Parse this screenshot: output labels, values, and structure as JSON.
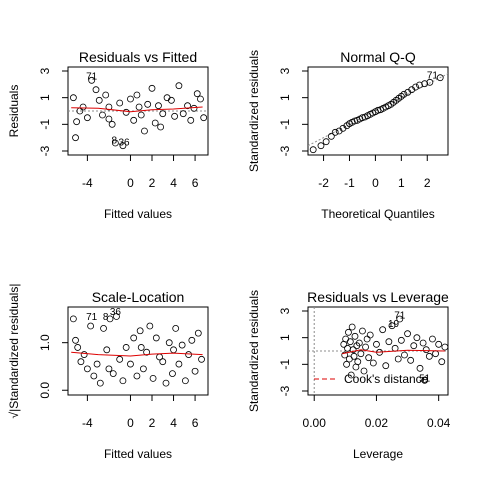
{
  "colors": {
    "smooth": "#dd0000",
    "reference": "#8c8c8c",
    "point": "#000000"
  },
  "chart_data": [
    {
      "type": "scatter",
      "title": "Residuals vs Fitted",
      "xlabel": "Fitted values",
      "ylabel": "Residuals",
      "xlim": [
        -5.8,
        7.2
      ],
      "ylim": [
        -3.3,
        3.3
      ],
      "xticks": [
        -4,
        0,
        2,
        4,
        6
      ],
      "yticks": [
        -3,
        -1,
        1,
        3
      ],
      "hline": 0,
      "smooth_line": [
        [
          -5.5,
          0.25
        ],
        [
          -3,
          0.2
        ],
        [
          0,
          -0.05
        ],
        [
          2,
          0.1
        ],
        [
          4,
          0.15
        ],
        [
          6.7,
          0.3
        ]
      ],
      "point_labels": [
        {
          "text": "71",
          "x": -3.6,
          "y": 2.35
        },
        {
          "text": "8",
          "x": -1.5,
          "y": -2.45
        },
        {
          "text": "36",
          "x": -0.6,
          "y": -2.6
        }
      ],
      "points": [
        [
          -5.3,
          1.0
        ],
        [
          -5.0,
          -0.8
        ],
        [
          -4.7,
          0.0
        ],
        [
          -5.1,
          -2.0
        ],
        [
          -4.4,
          0.3
        ],
        [
          -4.0,
          -0.5
        ],
        [
          -3.6,
          2.3
        ],
        [
          -3.2,
          1.6
        ],
        [
          -2.9,
          0.8
        ],
        [
          -2.6,
          -0.3
        ],
        [
          -2.3,
          1.2
        ],
        [
          -2.0,
          0.3
        ],
        [
          -1.7,
          -1.0
        ],
        [
          -1.4,
          -2.4
        ],
        [
          -1.0,
          0.6
        ],
        [
          -0.7,
          -2.6
        ],
        [
          -0.4,
          -0.1
        ],
        [
          0.0,
          0.9
        ],
        [
          0.3,
          -0.7
        ],
        [
          0.6,
          1.2
        ],
        [
          1.0,
          -0.3
        ],
        [
          1.3,
          -1.5
        ],
        [
          1.6,
          0.5
        ],
        [
          2.0,
          1.7
        ],
        [
          2.3,
          -0.9
        ],
        [
          2.6,
          0.4
        ],
        [
          3.0,
          -0.2
        ],
        [
          3.4,
          1.0
        ],
        [
          3.8,
          0.8
        ],
        [
          4.1,
          -0.4
        ],
        [
          4.5,
          1.9
        ],
        [
          4.9,
          -0.2
        ],
        [
          5.3,
          0.4
        ],
        [
          5.6,
          -0.7
        ],
        [
          5.9,
          0.2
        ],
        [
          6.2,
          1.3
        ],
        [
          6.5,
          0.9
        ],
        [
          6.8,
          -0.5
        ],
        [
          -2.0,
          -0.6
        ],
        [
          0.8,
          0.3
        ],
        [
          2.8,
          -1.2
        ]
      ]
    },
    {
      "type": "scatter",
      "title": "Normal Q-Q",
      "xlabel": "Theoretical Quantiles",
      "ylabel": "Standardized residuals",
      "xlim": [
        -2.6,
        2.8
      ],
      "ylim": [
        -3.3,
        3.3
      ],
      "xticks": [
        -2,
        -1,
        0,
        1,
        2
      ],
      "yticks": [
        -3,
        -1,
        1,
        3
      ],
      "reference_line": [
        [
          -2.6,
          -2.6
        ],
        [
          2.8,
          2.8
        ]
      ],
      "point_labels": [
        {
          "text": "71",
          "x": 2.2,
          "y": 2.45
        }
      ],
      "points": [
        [
          -2.4,
          -2.9
        ],
        [
          -2.1,
          -2.6
        ],
        [
          -1.9,
          -2.3
        ],
        [
          -1.7,
          -1.9
        ],
        [
          -1.55,
          -1.6
        ],
        [
          -1.4,
          -1.5
        ],
        [
          -1.25,
          -1.3
        ],
        [
          -1.1,
          -1.1
        ],
        [
          -1.0,
          -0.95
        ],
        [
          -0.9,
          -0.85
        ],
        [
          -0.8,
          -0.75
        ],
        [
          -0.7,
          -0.7
        ],
        [
          -0.6,
          -0.6
        ],
        [
          -0.5,
          -0.5
        ],
        [
          -0.4,
          -0.45
        ],
        [
          -0.3,
          -0.35
        ],
        [
          -0.2,
          -0.25
        ],
        [
          -0.1,
          -0.15
        ],
        [
          0.0,
          -0.05
        ],
        [
          0.1,
          0.05
        ],
        [
          0.2,
          0.1
        ],
        [
          0.3,
          0.2
        ],
        [
          0.4,
          0.3
        ],
        [
          0.5,
          0.4
        ],
        [
          0.6,
          0.5
        ],
        [
          0.7,
          0.65
        ],
        [
          0.8,
          0.8
        ],
        [
          0.9,
          0.95
        ],
        [
          1.0,
          1.1
        ],
        [
          1.1,
          1.25
        ],
        [
          1.25,
          1.4
        ],
        [
          1.4,
          1.6
        ],
        [
          1.55,
          1.8
        ],
        [
          1.7,
          1.95
        ],
        [
          1.9,
          2.05
        ],
        [
          2.1,
          2.15
        ],
        [
          2.5,
          2.5
        ]
      ]
    },
    {
      "type": "scatter",
      "title": "Scale-Location",
      "xlabel": "Fitted values",
      "ylabel": "√|Standardized residuals|",
      "xlim": [
        -5.8,
        7.2
      ],
      "ylim": [
        -0.1,
        1.75
      ],
      "xticks": [
        -4,
        0,
        2,
        4,
        6
      ],
      "yticks": [
        0.0,
        1.0
      ],
      "ytick_labels": [
        "0.0",
        "1.0"
      ],
      "smooth_line": [
        [
          -5.5,
          0.8
        ],
        [
          -3,
          0.75
        ],
        [
          0,
          0.72
        ],
        [
          2,
          0.76
        ],
        [
          4,
          0.78
        ],
        [
          6.7,
          0.75
        ]
      ],
      "point_labels": [
        {
          "text": "71",
          "x": -3.6,
          "y": 1.48
        },
        {
          "text": "8",
          "x": -2.3,
          "y": 1.48
        },
        {
          "text": "36",
          "x": -1.4,
          "y": 1.58
        }
      ],
      "points": [
        [
          -5.3,
          1.5
        ],
        [
          -5.1,
          1.05
        ],
        [
          -4.9,
          0.9
        ],
        [
          -4.6,
          0.6
        ],
        [
          -4.3,
          0.75
        ],
        [
          -4.0,
          0.45
        ],
        [
          -3.7,
          1.35
        ],
        [
          -3.4,
          0.3
        ],
        [
          -3.1,
          0.55
        ],
        [
          -2.8,
          0.15
        ],
        [
          -2.5,
          1.3
        ],
        [
          -2.2,
          0.85
        ],
        [
          -1.9,
          1.5
        ],
        [
          -1.6,
          0.35
        ],
        [
          -1.3,
          1.55
        ],
        [
          -1.0,
          0.65
        ],
        [
          -0.7,
          0.2
        ],
        [
          -0.4,
          0.9
        ],
        [
          0.0,
          0.55
        ],
        [
          0.3,
          1.1
        ],
        [
          0.6,
          0.3
        ],
        [
          0.9,
          1.25
        ],
        [
          1.2,
          0.45
        ],
        [
          1.5,
          0.8
        ],
        [
          1.8,
          1.35
        ],
        [
          2.1,
          0.25
        ],
        [
          2.4,
          1.1
        ],
        [
          2.7,
          0.7
        ],
        [
          3.0,
          0.6
        ],
        [
          3.3,
          0.15
        ],
        [
          3.6,
          1.0
        ],
        [
          3.9,
          0.35
        ],
        [
          4.2,
          1.3
        ],
        [
          4.5,
          0.55
        ],
        [
          4.8,
          0.95
        ],
        [
          5.1,
          0.2
        ],
        [
          5.4,
          0.75
        ],
        [
          5.7,
          1.05
        ],
        [
          6.0,
          0.4
        ],
        [
          6.3,
          1.2
        ],
        [
          6.6,
          0.65
        ],
        [
          -2.0,
          0.45
        ],
        [
          1.0,
          0.9
        ],
        [
          4.0,
          0.85
        ]
      ]
    },
    {
      "type": "scatter",
      "title": "Residuals vs Leverage",
      "xlabel": "Leverage",
      "ylabel": "Standardized residuals",
      "xlim": [
        -0.002,
        0.043
      ],
      "ylim": [
        -3.3,
        3.3
      ],
      "xticks": [
        0.0,
        0.02,
        0.04
      ],
      "xtick_labels": [
        "0.00",
        "0.02",
        "0.04"
      ],
      "yticks": [
        -3,
        -1,
        1,
        3
      ],
      "hline": 0,
      "vline": 0,
      "legend": {
        "label": "Cook's distance",
        "position": "bottom-left"
      },
      "smooth_line": [
        [
          0.009,
          -0.2
        ],
        [
          0.015,
          0.1
        ],
        [
          0.02,
          -0.1
        ],
        [
          0.03,
          0.05
        ],
        [
          0.042,
          0.0
        ]
      ],
      "point_labels": [
        {
          "text": "71",
          "x": 0.0275,
          "y": 2.45
        },
        {
          "text": "19",
          "x": 0.0255,
          "y": 1.8
        },
        {
          "text": "51",
          "x": 0.0355,
          "y": -2.3
        }
      ],
      "points": [
        [
          0.0095,
          0.5
        ],
        [
          0.0098,
          -0.3
        ],
        [
          0.0101,
          0.9
        ],
        [
          0.0104,
          -1.0
        ],
        [
          0.0107,
          0.2
        ],
        [
          0.011,
          1.4
        ],
        [
          0.0113,
          -0.6
        ],
        [
          0.0116,
          0.7
        ],
        [
          0.0119,
          -1.8
        ],
        [
          0.0122,
          1.8
        ],
        [
          0.0125,
          0.1
        ],
        [
          0.0128,
          -0.4
        ],
        [
          0.0131,
          1.1
        ],
        [
          0.0134,
          -1.2
        ],
        [
          0.0137,
          0.4
        ],
        [
          0.014,
          -0.8
        ],
        [
          0.0145,
          0.6
        ],
        [
          0.015,
          -0.2
        ],
        [
          0.0155,
          1.5
        ],
        [
          0.016,
          -1.5
        ],
        [
          0.0165,
          0.3
        ],
        [
          0.017,
          0.9
        ],
        [
          0.0175,
          -0.5
        ],
        [
          0.018,
          1.2
        ],
        [
          0.019,
          -0.9
        ],
        [
          0.02,
          0.5
        ],
        [
          0.021,
          -0.1
        ],
        [
          0.022,
          1.6
        ],
        [
          0.023,
          -1.1
        ],
        [
          0.024,
          0.7
        ],
        [
          0.025,
          1.9
        ],
        [
          0.026,
          0.2
        ],
        [
          0.027,
          -0.6
        ],
        [
          0.0275,
          2.4
        ],
        [
          0.028,
          0.8
        ],
        [
          0.029,
          -0.3
        ],
        [
          0.03,
          1.3
        ],
        [
          0.031,
          -0.7
        ],
        [
          0.032,
          0.4
        ],
        [
          0.033,
          1.0
        ],
        [
          0.034,
          -1.3
        ],
        [
          0.035,
          0.6
        ],
        [
          0.0355,
          -2.2
        ],
        [
          0.036,
          0.1
        ],
        [
          0.037,
          -0.4
        ],
        [
          0.038,
          0.9
        ],
        [
          0.039,
          -0.2
        ],
        [
          0.04,
          0.5
        ],
        [
          0.041,
          -0.8
        ],
        [
          0.042,
          0.3
        ]
      ]
    }
  ]
}
